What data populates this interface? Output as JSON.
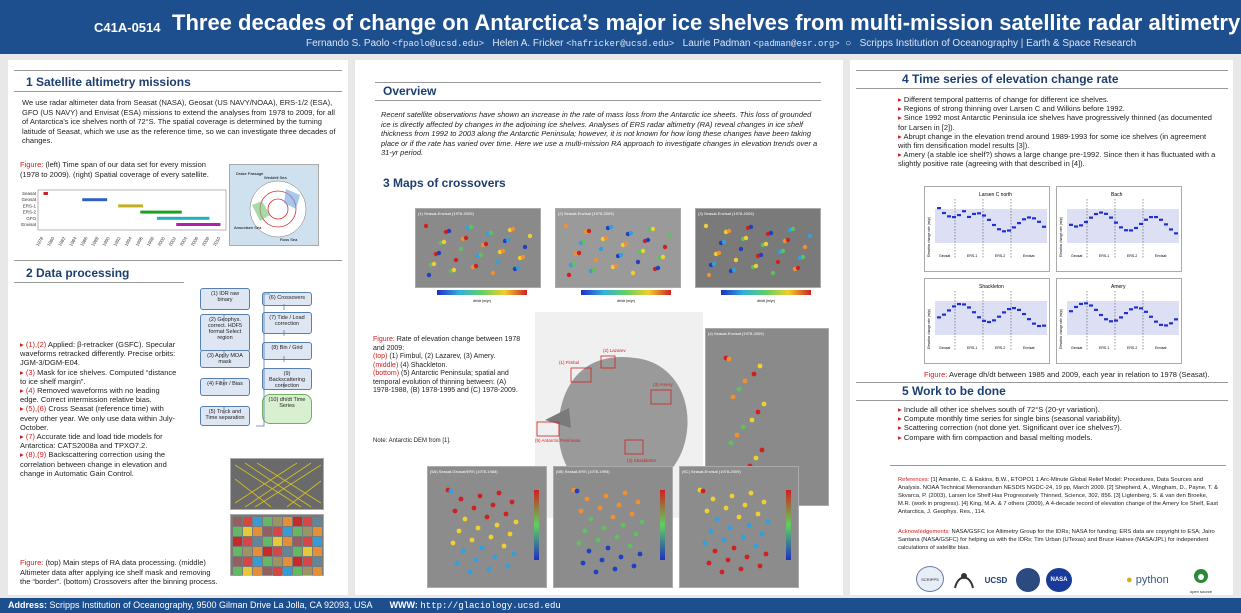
{
  "header": {
    "poster_id": "C41A-0514",
    "title": "Three decades of change on Antarctica’s major ice shelves from multi-mission satellite radar altimetry",
    "author1": "Fernando S. Paolo",
    "email1": "<fpaolo@ucsd.edu>",
    "author2": "Helen A. Fricker",
    "email2": "<hafricker@ucsd.edu>",
    "author3": "Laurie Padman",
    "email3": "<padman@esr.org>",
    "affiliation": "Scripps Institution of Oceanography | Earth & Space Research"
  },
  "section1": {
    "heading": "1  Satellite altimetry missions",
    "body": "We use radar altimeter data from Seasat (NASA), Geosat (US NAVY/NOAA), ERS-1/2 (ESA), GFO (US NAVY) and Envisat (ESA) missions to extend the analyses from 1978 to 2009, for all of Antarctica’s ice shelves north of 72°S. The spatial coverage is determined by the turning latitude of Seasat, which we use as the reference time, so we can investigate three decades of changes.",
    "fig_label": "Figure:",
    "fig_caption": "(left) Time span of our data set for every mission (1978 to 2009). (right) Spatial coverage of every satellite.",
    "missions": [
      "Seasat",
      "Geosat",
      "ERS-1",
      "ERS-2",
      "GFO",
      "Envisat"
    ],
    "years": [
      "1978",
      "1980",
      "1982",
      "1984",
      "1986",
      "1988",
      "1990",
      "1992",
      "1994",
      "1996",
      "1998",
      "2000",
      "2002",
      "2004",
      "2006",
      "2008",
      "2010"
    ],
    "map_labels": [
      "Drake Passage",
      "Weddell Sea",
      "Ross Sea",
      "Amundsen Sea"
    ]
  },
  "section2": {
    "heading": "2  Data processing",
    "bullets": [
      {
        "mark": "(1),(2)",
        "text": " Applied: β-retracker (GSFC). Specular waveforms retracked differently. Precise orbits: JGM-3/DGM-E04."
      },
      {
        "mark": "(3)",
        "text": " Mask for ice shelves. Computed “distance to ice shelf margin”."
      },
      {
        "mark": "(4)",
        "text": " Removed waveforms with no leading edge. Correct intermission relative bias."
      },
      {
        "mark": "(5),(6)",
        "text": " Cross Seasat (reference time) with every other year. We only use data within July-October."
      },
      {
        "mark": "(7)",
        "text": " Accurate tide and load tide models for Antarctica: CATS2008a and TPXO7.2."
      },
      {
        "mark": "(8),(9)",
        "text": " Backscattering correction using the correlation between change in elevation and change in Automatic Gain Control."
      }
    ],
    "flow_left": [
      "(1) IDR raw binary",
      "(2) Geophys. correct. HDF5 format Select region",
      "(3) Apply MOA mask",
      "(4) Filter / Bias",
      "(5) Track and Time separation"
    ],
    "flow_right": [
      "(6) Crossovers",
      "(7) Tide / Load correction",
      "(8) Bin / Grid",
      "(9) Backscattering correction",
      "(10) dh/dt Time Series"
    ],
    "fig_label": "Figure:",
    "fig_caption": "(top) Main steps of RA data processing. (middle) Altimeter data after applying ice shelf mask and removing the “border”. (bottom) Crossovers after the binning process."
  },
  "overview": {
    "heading": "Overview",
    "body": "Recent satellite observations have shown an increase in the rate of mass loss from the Antarctic ice sheets. This loss of grounded ice is directly affected by changes in the adjoining ice shelves. Analyses of ERS radar altimetry (RA) reveal changes in ice shelf thickness from 1992 to 2003 along the Antarctic Peninsula; however, it is not known for how long these changes have been taking place or if the rate has varied over time. Here we use a multi-mission RA approach to investigate changes in elevation trends over a 31-yr period."
  },
  "section3": {
    "heading": "3  Maps of crossovers",
    "fig_label": "Figure:",
    "fig_caption_a": " Rate of elevation change between 1978 and 2009:",
    "fig_top": "(top)",
    "fig_top_text": " (1) Fimbul, (2) Lazarev, (3) Amery.",
    "fig_mid": "(middle)",
    "fig_mid_text": " (4) Shackleton.",
    "fig_bot": "(bottom)",
    "fig_bot_text": " (5) Antarctic Peninsula; spatial and temporal evolution of thinning between: (A) 1978-1988, (B) 1978-1995 and (C) 1978-2009.",
    "note": "Note: Antarctic DEM from [1].",
    "map_titles": [
      "(1) Seasat-Envisat (1978-2009)",
      "(2) Seasat-Envisat (1978-2009)",
      "(3) Seasat-Envisat (1978-2009)",
      "(4) Seasat-Envisat (1978-2009)",
      "(5A) Seasat-Geosat/ERS (1978-1988)",
      "(5B) Seasat-ERS (1978-1995)",
      "(5C) Seasat-Envisat (1978-2009)"
    ],
    "region_labels": [
      "(1) Fimbul",
      "(2) Lazarev",
      "(3) Amery",
      "(5) Antarctic Peninsula",
      "(4) Shackleton"
    ],
    "colorbar_label": "dh/dt (m/yr)"
  },
  "section4": {
    "heading": "4  Time series of elevation change rate",
    "bullets": [
      "Different temporal patterns of change for different ice shelves.",
      "Regions of strong thinning over Larsen C and Wilkins before 1992.",
      "Since 1992 most Antarctic Peninsula ice shelves have progressively thinned (as documented for Larsen in [2]).",
      "Abrupt change in the elevation trend around 1989-1993 for some ice shelves (in agreement with firn densification model results [3]).",
      "Amery (a stable ice shelf?) shows a large change pre-1992. Since then it has fluctuated with a slightly positive rate (agreeing with that described in [4])."
    ],
    "panels": [
      "Larsen C north",
      "Bach",
      "Shackleton",
      "Amery"
    ],
    "axis_label": "Elevation change rate (m/yr)",
    "mission_labels": [
      "Geosat",
      "ERS-1",
      "ERS-2",
      "Envisat"
    ],
    "fig_label": "Figure:",
    "fig_caption": " Average dh/dt between 1985 and 2009, each year in relation to 1978 (Seasat)."
  },
  "section5": {
    "heading": "5  Work to be done",
    "bullets": [
      "Include all other ice shelves south of 72°S (20-yr variation).",
      "Compute monthly time series for single bins (seasonal variability).",
      "Scattering correction (not done yet. Significant over ice shelves?).",
      "Compare with firn compaction and basal melting models."
    ]
  },
  "references": {
    "label": "References:",
    "text": " [1] Amante, C. & Eakins, B.W., ETOPO1 1 Arc-Minute Global Relief Model: Procedures, Data Sources and Analysis. NOAA Technical Memorandum NESDIS NGDC-24, 19 pp, March 2009. [2] Shepherd, A., Wingham, D., Payne, T. & Skvarca, P. (2003), Larsen Ice Shelf Has Progressively Thinned, Science, 302, 856. [3] Ligtenberg, S. & van den Broeke, M.R. (work in progress). [4] King, M.A. & 7 others (2009), A 4-decade record of elevation change of the Amery Ice Shelf, East Antarctica, J. Geophys. Res., 114."
  },
  "acknowledgements": {
    "label": "Acknowledgements:",
    "text": " NASA/GSFC Ice Altimetry Group for the IDRs; NASA for funding; ERS data are copyright to ESA; Jairo Santana (NASA/GSFC) for helping us with the IDRs; Tim Urban (UTexas) and Bruce Haines (NASA/JPL) for independent calculations of satellite bias."
  },
  "logos": [
    "SCRIPPS",
    "UCSD",
    "NASA",
    "python",
    "open source"
  ],
  "footer": {
    "address_label": "Address:",
    "address": "Scripps Institution of Oceanography, 9500 Gilman Drive La Jolla, CA 92093, USA",
    "www_label": "WWW:",
    "www": "http://glaciology.ucsd.edu"
  },
  "colors": {
    "header_bg": "#1d4f8f",
    "accent_red": "#d02020",
    "heading": "#1d3f70"
  }
}
